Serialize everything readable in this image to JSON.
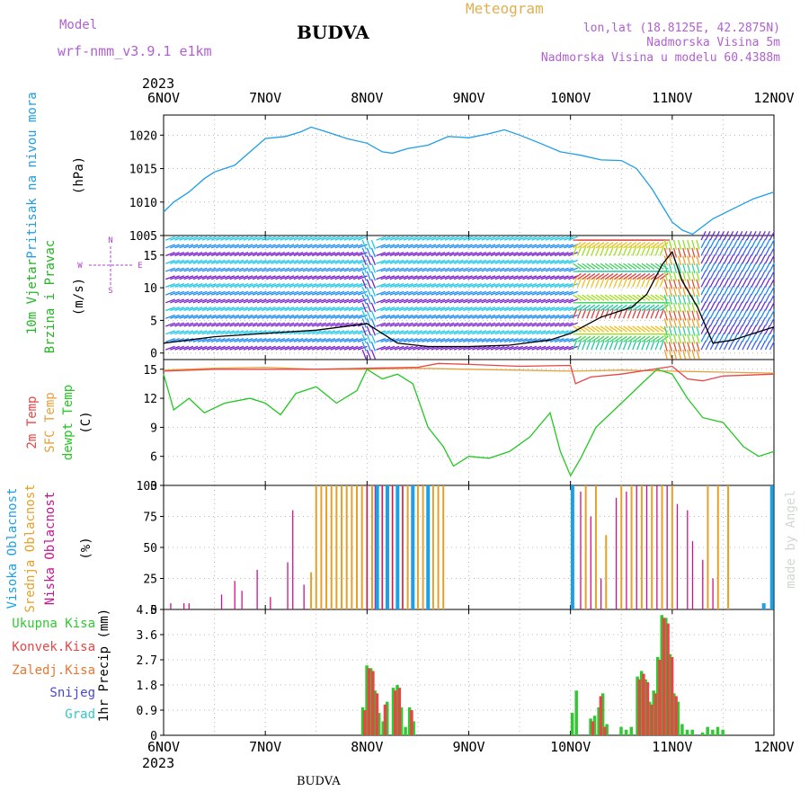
{
  "header": {
    "model_label": "Model",
    "model_name": "wrf-nmm_v3.9.1 e1km",
    "station": "BUDVA",
    "product": "Meteogram",
    "coords": "lon,lat (18.8125E, 42.2875N)",
    "elevation": "Nadmorska Visina 5m",
    "model_elevation": "Nadmorska Visina u modelu 60.4388m",
    "footer_station": "BUDVA",
    "watermark": "made by Angel"
  },
  "time_axis": {
    "year": "2023",
    "ticks": [
      "6NOV",
      "7NOV",
      "8NOV",
      "9NOV",
      "10NOV",
      "11NOV",
      "12NOV"
    ],
    "range_days": [
      0,
      6
    ]
  },
  "colors": {
    "pressure": "#1e9ee6",
    "wind_label": "#22b422",
    "temp2m": "#e64646",
    "sfc_temp": "#e6a03c",
    "dewpoint": "#22c822",
    "high_cloud": "#1ea0e6",
    "mid_cloud": "#e6a028",
    "low_cloud": "#c8148c",
    "total_precip": "#32c832",
    "conv_precip": "#e64646",
    "frozen_precip": "#e67832",
    "snow": "#4646dc",
    "hail": "#32c8c8",
    "compass": "#b040d0",
    "header_purple": "#b060d0",
    "header_orange": "#e0b050"
  },
  "chart_data": [
    {
      "type": "line",
      "panel": "pressure",
      "ylabel_main": "Pritisak na nivou mora",
      "ylabel_unit": "(hPa)",
      "ylim": [
        1005,
        1023
      ],
      "yticks": [
        "1020",
        "1015",
        "1010",
        "1005"
      ],
      "grid": true,
      "series": [
        {
          "x": [
            0,
            0.1,
            0.25,
            0.4,
            0.5,
            0.7,
            0.85,
            1.0,
            1.2,
            1.35,
            1.45,
            1.6,
            1.8,
            2.0,
            2.15,
            2.25,
            2.4,
            2.6,
            2.8,
            3.0,
            3.2,
            3.35,
            3.5,
            3.7,
            3.9,
            4.1,
            4.3,
            4.5,
            4.65,
            4.8,
            4.9,
            5.0,
            5.1,
            5.2,
            5.4,
            5.6,
            5.8,
            6.0
          ],
          "values": [
            1008.5,
            1010.0,
            1011.5,
            1013.5,
            1014.5,
            1015.5,
            1017.5,
            1019.5,
            1019.8,
            1020.5,
            1021.2,
            1020.5,
            1019.5,
            1018.8,
            1017.5,
            1017.3,
            1018.0,
            1018.5,
            1019.8,
            1019.6,
            1020.2,
            1020.8,
            1020.0,
            1018.8,
            1017.5,
            1017.0,
            1016.3,
            1016.2,
            1015.0,
            1012.0,
            1009.5,
            1007.0,
            1005.8,
            1005.2,
            1007.5,
            1009.0,
            1010.5,
            1011.5
          ]
        }
      ]
    },
    {
      "type": "line",
      "panel": "wind",
      "ylabel_main": "10m Vjetar",
      "ylabel_main2": "Brzina i Pravac",
      "ylabel_unit": "(m/s)",
      "compass": {
        "n": "N",
        "s": "S",
        "e": "E",
        "w": "W"
      },
      "ylim": [
        -1,
        18
      ],
      "yticks": [
        "15",
        "10",
        "5",
        "0"
      ],
      "grid": true,
      "series": [
        {
          "name": "speed",
          "x": [
            0,
            0.5,
            1.0,
            1.5,
            2.0,
            2.3,
            2.6,
            3.0,
            3.4,
            3.8,
            4.0,
            4.3,
            4.6,
            4.75,
            4.9,
            5.0,
            5.1,
            5.25,
            5.4,
            5.6,
            5.8,
            6.0
          ],
          "values": [
            1.5,
            2.5,
            3.0,
            3.5,
            4.5,
            1.5,
            1.0,
            1.0,
            1.2,
            2.0,
            3.0,
            5.5,
            7.0,
            9.0,
            13.5,
            15.5,
            11.0,
            7.0,
            1.5,
            2.0,
            3.0,
            4.0
          ]
        }
      ]
    },
    {
      "type": "line",
      "panel": "temperature",
      "ylabel_main": "2m Temp",
      "ylabel_main2": "SFC Temp",
      "ylabel_main3": "dewpt Temp",
      "ylabel_unit": "(C)",
      "ylim": [
        3,
        16
      ],
      "yticks": [
        "15",
        "12",
        "9",
        "6",
        "3"
      ],
      "grid": true,
      "series": [
        {
          "name": "2m Temp",
          "x": [
            0,
            0.5,
            1.0,
            1.5,
            2.0,
            2.5,
            2.7,
            3.0,
            3.5,
            4.0,
            4.05,
            4.2,
            4.5,
            5.0,
            5.15,
            5.3,
            5.5,
            6.0
          ],
          "values": [
            14.8,
            15.0,
            15.0,
            15.0,
            15.1,
            15.2,
            15.6,
            15.5,
            15.3,
            15.4,
            13.5,
            14.2,
            14.5,
            15.3,
            14.0,
            13.8,
            14.3,
            14.5
          ]
        },
        {
          "name": "SFC Temp",
          "x": [
            0,
            0.5,
            1.0,
            1.5,
            2.0,
            2.5,
            3.0,
            3.5,
            4.0,
            4.5,
            5.0,
            5.5,
            6.0
          ],
          "values": [
            14.9,
            15.1,
            15.2,
            15.0,
            15.0,
            15.1,
            15.0,
            14.9,
            14.8,
            14.9,
            14.8,
            14.7,
            14.6
          ]
        },
        {
          "name": "dewpt Temp",
          "x": [
            0,
            0.1,
            0.25,
            0.4,
            0.6,
            0.85,
            1.0,
            1.15,
            1.3,
            1.5,
            1.7,
            1.9,
            2.0,
            2.15,
            2.3,
            2.45,
            2.6,
            2.75,
            2.85,
            3.0,
            3.2,
            3.4,
            3.6,
            3.8,
            3.9,
            4.0,
            4.1,
            4.25,
            4.5,
            4.7,
            4.85,
            5.0,
            5.15,
            5.3,
            5.5,
            5.7,
            5.85,
            6.0
          ],
          "values": [
            14.5,
            10.8,
            12.0,
            10.5,
            11.5,
            12.0,
            11.5,
            10.3,
            12.5,
            13.2,
            11.5,
            12.8,
            15.0,
            14.0,
            14.5,
            13.5,
            9.0,
            7.0,
            5.0,
            6.0,
            5.8,
            6.5,
            8.0,
            10.5,
            6.5,
            4.0,
            5.8,
            9.0,
            11.5,
            13.5,
            15.0,
            14.5,
            12.0,
            10.0,
            9.5,
            7.0,
            6.0,
            6.5
          ]
        }
      ]
    },
    {
      "type": "bar",
      "panel": "cloud",
      "ylabel_main": "Visoka Oblacnost",
      "ylabel_main2": "Srednja Oblacnost",
      "ylabel_main3": "Niska Oblacnost",
      "ylabel_unit": "(%)",
      "ylim": [
        0,
        100
      ],
      "yticks": [
        "100",
        "75",
        "50",
        "25",
        "0"
      ],
      "grid": true,
      "series": [
        {
          "name": "Visoka Oblacnost",
          "x": [
            2.1,
            2.2,
            2.3,
            2.45,
            2.6,
            4.02,
            5.9,
            5.98
          ],
          "values": [
            100,
            100,
            100,
            100,
            100,
            100,
            5,
            100
          ]
        },
        {
          "name": "Srednja Oblacnost",
          "x": [
            1.45,
            1.5,
            1.55,
            1.6,
            1.65,
            1.7,
            1.75,
            1.8,
            1.85,
            1.9,
            1.95,
            2.0,
            2.05,
            2.1,
            2.15,
            2.2,
            2.25,
            2.3,
            2.35,
            2.4,
            2.45,
            2.5,
            2.55,
            2.6,
            2.65,
            2.7,
            2.75,
            4.15,
            4.25,
            4.35,
            4.5,
            4.6,
            4.7,
            4.8,
            4.9,
            5.0,
            5.35,
            5.45,
            5.55
          ],
          "values": [
            30,
            100,
            100,
            100,
            100,
            100,
            100,
            100,
            100,
            100,
            100,
            100,
            100,
            100,
            100,
            100,
            100,
            100,
            100,
            100,
            100,
            100,
            100,
            30,
            100,
            100,
            100,
            100,
            100,
            60,
            100,
            100,
            100,
            100,
            100,
            100,
            100,
            100,
            100
          ]
        },
        {
          "name": "Niska Oblacnost",
          "x": [
            0.07,
            0.2,
            0.25,
            0.57,
            0.7,
            0.77,
            0.92,
            1.05,
            1.22,
            1.27,
            1.38,
            2.0,
            2.08,
            2.15,
            2.25,
            2.35,
            2.45,
            4.1,
            4.2,
            4.3,
            4.45,
            4.55,
            4.65,
            4.75,
            4.85,
            4.95,
            5.05,
            5.15,
            5.2,
            5.3,
            5.4
          ],
          "values": [
            5,
            5,
            5,
            12,
            23,
            15,
            32,
            10,
            38,
            80,
            20,
            100,
            100,
            100,
            100,
            100,
            100,
            95,
            75,
            25,
            90,
            95,
            100,
            100,
            100,
            100,
            85,
            80,
            55,
            40,
            25
          ]
        }
      ]
    },
    {
      "type": "bar",
      "panel": "precipitation",
      "ylabel_main": "1hr Precip (mm)",
      "legend": [
        "Ukupna Kisa",
        "Konvek.Kisa",
        "Zaledj.Kisa",
        "Snijeg",
        "Grad"
      ],
      "ylim": [
        0,
        4.5
      ],
      "yticks": [
        "4.5",
        "3.6",
        "2.7",
        "1.8",
        "0.9",
        "0"
      ],
      "grid": true,
      "series": [
        {
          "name": "Ukupna Kisa",
          "x": [
            1.96,
            2.0,
            2.04,
            2.08,
            2.12,
            2.16,
            2.2,
            2.26,
            2.3,
            2.34,
            2.38,
            2.42,
            2.46,
            4.02,
            4.06,
            4.2,
            4.24,
            4.28,
            4.32,
            4.36,
            4.5,
            4.55,
            4.6,
            4.66,
            4.7,
            4.74,
            4.78,
            4.82,
            4.86,
            4.9,
            4.94,
            4.98,
            5.02,
            5.06,
            5.1,
            5.15,
            5.2,
            5.3,
            5.35,
            5.4,
            5.45,
            5.5
          ],
          "values": [
            1.0,
            2.5,
            2.4,
            1.6,
            0.8,
            0.5,
            1.2,
            1.7,
            1.8,
            1.0,
            0.3,
            1.0,
            0.5,
            0.8,
            1.6,
            0.6,
            0.7,
            1.0,
            1.5,
            0.4,
            0.3,
            0.2,
            0.3,
            2.1,
            2.3,
            2.0,
            1.2,
            1.6,
            2.8,
            4.3,
            4.2,
            2.9,
            1.5,
            1.2,
            0.4,
            0.2,
            0.2,
            0.1,
            0.3,
            0.2,
            0.3,
            0.2
          ]
        },
        {
          "name": "Konvek.Kisa",
          "x": [
            1.98,
            2.02,
            2.06,
            2.1,
            2.18,
            2.28,
            2.32,
            2.44,
            4.22,
            4.3,
            4.34,
            4.68,
            4.72,
            4.76,
            4.8,
            4.84,
            4.88,
            4.92,
            4.96,
            5.0,
            5.04
          ],
          "values": [
            0.9,
            2.4,
            2.3,
            1.5,
            1.1,
            1.6,
            1.7,
            0.9,
            0.5,
            1.4,
            0.3,
            2.0,
            2.2,
            1.9,
            1.1,
            1.5,
            2.7,
            4.2,
            4.0,
            2.8,
            1.4
          ]
        },
        {
          "name": "Zaledj.Kisa",
          "x": [],
          "values": []
        },
        {
          "name": "Snijeg",
          "x": [],
          "values": []
        },
        {
          "name": "Grad",
          "x": [],
          "values": []
        }
      ]
    }
  ]
}
